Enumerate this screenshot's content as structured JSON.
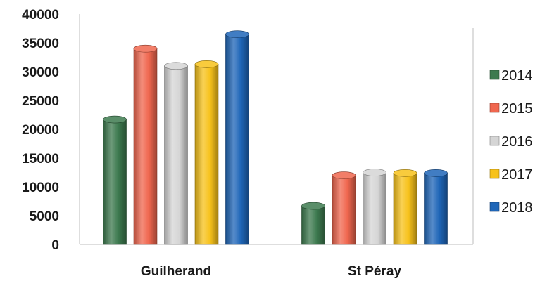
{
  "chart_data": {
    "type": "bar",
    "categories": [
      "Guilherand",
      "St Péray"
    ],
    "series": [
      {
        "name": "2014",
        "values": [
          21700,
          6700
        ],
        "color": "#3d7a4f"
      },
      {
        "name": "2015",
        "values": [
          34000,
          12000
        ],
        "color": "#f0674f"
      },
      {
        "name": "2016",
        "values": [
          31000,
          12500
        ],
        "color": "#d5d5d5"
      },
      {
        "name": "2017",
        "values": [
          31300,
          12400
        ],
        "color": "#f7c21b"
      },
      {
        "name": "2018",
        "values": [
          36500,
          12400
        ],
        "color": "#1f66b8"
      }
    ],
    "ylim": [
      0,
      40000
    ],
    "yticks": [
      0,
      5000,
      10000,
      15000,
      20000,
      25000,
      30000,
      35000,
      40000
    ],
    "grid": false,
    "legend": "right",
    "title": "",
    "xlabel": "",
    "ylabel": ""
  }
}
